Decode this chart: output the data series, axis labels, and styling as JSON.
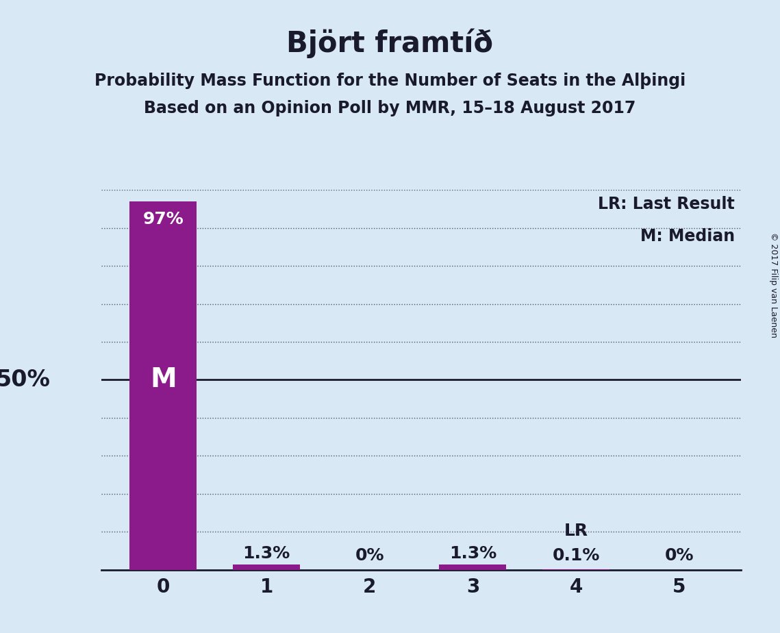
{
  "title": "Björt framtíð",
  "subtitle1": "Probability Mass Function for the Number of Seats in the Alþingi",
  "subtitle2": "Based on an Opinion Poll by MMR, 15–18 August 2017",
  "copyright": "© 2017 Filip van Laenen",
  "categories": [
    0,
    1,
    2,
    3,
    4,
    5
  ],
  "values": [
    97.0,
    1.3,
    0.0,
    1.3,
    0.1,
    0.0
  ],
  "bar_color": "#8b1a8b",
  "bg_color": "#d8e8f4",
  "text_color": "#1a1a2e",
  "bar_label_color_inside": "#ffffff",
  "bar_label_color_outside": "#1a1a2e",
  "ylim": [
    0,
    100
  ],
  "median_seat": 0,
  "last_result_seat": 4,
  "fifty_pct_line": 50,
  "legend_lr": "LR: Last Result",
  "legend_m": "M: Median",
  "title_fontsize": 30,
  "subtitle_fontsize": 17,
  "label_fontsize": 18,
  "axis_fontsize": 20,
  "legend_fontsize": 17,
  "ylabel_50pct_fontsize": 24,
  "copyright_fontsize": 9
}
